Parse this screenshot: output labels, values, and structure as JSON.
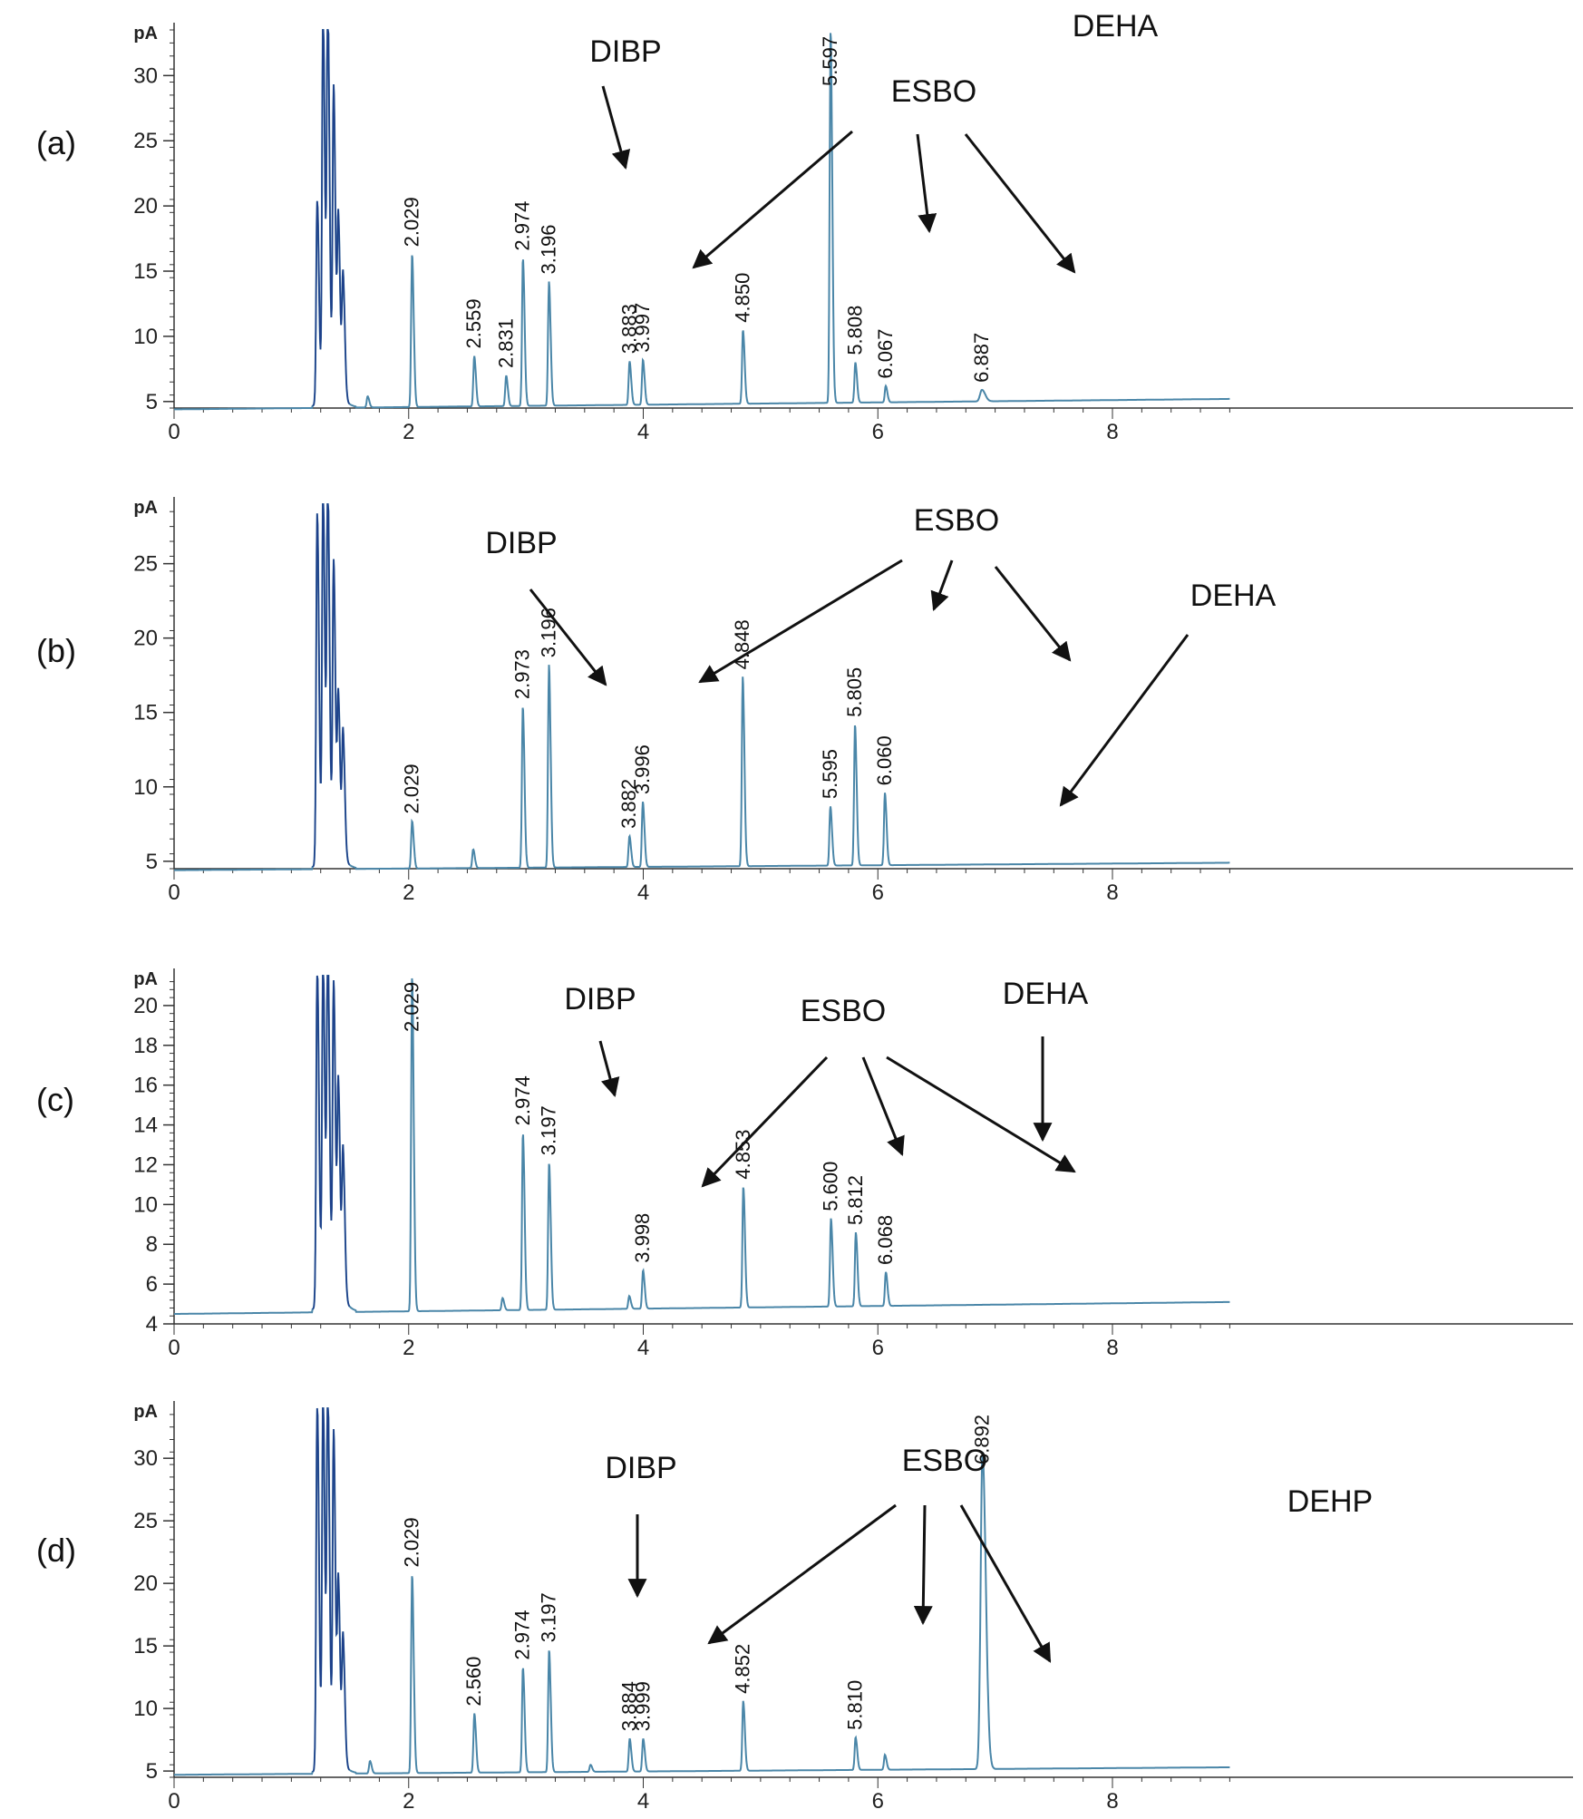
{
  "chart_data": [
    {
      "type": "line",
      "panel_label": "(a)",
      "ylabel": "pA",
      "xlim": [
        0,
        9
      ],
      "ylim": [
        4.5,
        33.5
      ],
      "xticks": [
        0,
        2,
        4,
        6,
        8
      ],
      "yticks": [
        5,
        10,
        15,
        20,
        25,
        30
      ],
      "baseline": [
        4.4,
        5.2
      ],
      "solvent_peaks": [
        {
          "x": 1.22,
          "y": 20
        },
        {
          "x": 1.27,
          "y": 34
        },
        {
          "x": 1.31,
          "y": 34
        },
        {
          "x": 1.36,
          "y": 28
        },
        {
          "x": 1.4,
          "y": 18
        },
        {
          "x": 1.44,
          "y": 14
        }
      ],
      "peaks": [
        {
          "rt": 1.65,
          "y": 5.4
        },
        {
          "rt": 2.029,
          "y": 16.3,
          "label": "2.029"
        },
        {
          "rt": 2.559,
          "y": 8.5,
          "label": "2.559"
        },
        {
          "rt": 2.831,
          "y": 7.0,
          "label": "2.831"
        },
        {
          "rt": 2.974,
          "y": 16.0,
          "label": "2.974"
        },
        {
          "rt": 3.196,
          "y": 14.2,
          "label": "3.196"
        },
        {
          "rt": 3.883,
          "y": 8.1,
          "label": "3.883"
        },
        {
          "rt": 3.997,
          "y": 8.2,
          "label": "3.997"
        },
        {
          "rt": 4.85,
          "y": 10.5,
          "label": "4.850"
        },
        {
          "rt": 5.597,
          "y": 33.5,
          "label": "5.597"
        },
        {
          "rt": 5.808,
          "y": 8.0,
          "label": "5.808"
        },
        {
          "rt": 6.067,
          "y": 6.2,
          "label": "6.067"
        },
        {
          "rt": 6.887,
          "y": 5.9,
          "label": "6.887"
        }
      ],
      "annotations": [
        {
          "text": "DIBP",
          "targets": [
            2.974
          ]
        },
        {
          "text": "ESBO",
          "targets": [
            3.196,
            4.85,
            5.808
          ]
        },
        {
          "text": "DEHA",
          "targets": []
        }
      ]
    },
    {
      "type": "line",
      "panel_label": "(b)",
      "ylabel": "pA",
      "xlim": [
        0,
        9
      ],
      "ylim": [
        4.5,
        29
      ],
      "xticks": [
        0,
        2,
        4,
        6,
        8
      ],
      "yticks": [
        5,
        10,
        15,
        20,
        25
      ],
      "baseline": [
        4.4,
        4.9
      ],
      "solvent_peaks": [
        {
          "x": 1.22,
          "y": 28
        },
        {
          "x": 1.27,
          "y": 29
        },
        {
          "x": 1.31,
          "y": 29
        },
        {
          "x": 1.36,
          "y": 24
        },
        {
          "x": 1.4,
          "y": 15
        },
        {
          "x": 1.44,
          "y": 13
        }
      ],
      "peaks": [
        {
          "rt": 2.029,
          "y": 7.7,
          "label": "2.029"
        },
        {
          "rt": 2.55,
          "y": 5.8
        },
        {
          "rt": 2.973,
          "y": 15.4,
          "label": "2.973"
        },
        {
          "rt": 3.196,
          "y": 18.2,
          "label": "3.196"
        },
        {
          "rt": 3.882,
          "y": 6.7,
          "label": "3.882"
        },
        {
          "rt": 3.996,
          "y": 9.0,
          "label": "3.996"
        },
        {
          "rt": 4.848,
          "y": 17.4,
          "label": "4.848"
        },
        {
          "rt": 5.595,
          "y": 8.7,
          "label": "5.595"
        },
        {
          "rt": 5.805,
          "y": 14.2,
          "label": "5.805"
        },
        {
          "rt": 6.06,
          "y": 9.6,
          "label": "6.060"
        }
      ],
      "annotations": [
        {
          "text": "DIBP",
          "targets": [
            2.973
          ]
        },
        {
          "text": "ESBO",
          "targets": [
            3.196,
            4.848,
            5.805
          ]
        },
        {
          "text": "DEHA",
          "targets": [
            5.595
          ]
        }
      ]
    },
    {
      "type": "line",
      "panel_label": "(c)",
      "ylabel": "pA",
      "xlim": [
        0,
        9
      ],
      "ylim": [
        4,
        21.5
      ],
      "xticks": [
        0,
        2,
        4,
        6,
        8
      ],
      "yticks": [
        4,
        6,
        8,
        10,
        12,
        14,
        16,
        18,
        20
      ],
      "baseline": [
        4.5,
        5.1
      ],
      "solvent_peaks": [
        {
          "x": 1.22,
          "y": 21.5
        },
        {
          "x": 1.27,
          "y": 21.5
        },
        {
          "x": 1.31,
          "y": 21.5
        },
        {
          "x": 1.36,
          "y": 20
        },
        {
          "x": 1.4,
          "y": 15
        },
        {
          "x": 1.44,
          "y": 12
        }
      ],
      "peaks": [
        {
          "rt": 2.029,
          "y": 21.5,
          "label": "2.029"
        },
        {
          "rt": 2.8,
          "y": 5.3
        },
        {
          "rt": 2.974,
          "y": 13.6,
          "label": "2.974"
        },
        {
          "rt": 3.197,
          "y": 12.1,
          "label": "3.197"
        },
        {
          "rt": 3.88,
          "y": 5.4
        },
        {
          "rt": 3.998,
          "y": 6.7,
          "label": "3.998"
        },
        {
          "rt": 4.853,
          "y": 10.9,
          "label": "4.853"
        },
        {
          "rt": 5.6,
          "y": 9.3,
          "label": "5.600"
        },
        {
          "rt": 5.812,
          "y": 8.6,
          "label": "5.812"
        },
        {
          "rt": 6.068,
          "y": 6.6,
          "label": "6.068"
        }
      ],
      "annotations": [
        {
          "text": "DIBP",
          "targets": [
            2.974
          ]
        },
        {
          "text": "ESBO",
          "targets": [
            3.197,
            4.853,
            5.812
          ]
        },
        {
          "text": "DEHA",
          "targets": [
            5.6
          ]
        }
      ]
    },
    {
      "type": "line",
      "panel_label": "(d)",
      "ylabel": "pA",
      "xlim": [
        0,
        9
      ],
      "ylim": [
        4.5,
        34
      ],
      "xticks": [
        0,
        2,
        4,
        6,
        8
      ],
      "yticks": [
        5,
        10,
        15,
        20,
        25,
        30
      ],
      "baseline": [
        4.7,
        5.3
      ],
      "solvent_peaks": [
        {
          "x": 1.22,
          "y": 34
        },
        {
          "x": 1.27,
          "y": 34
        },
        {
          "x": 1.31,
          "y": 34
        },
        {
          "x": 1.36,
          "y": 31
        },
        {
          "x": 1.4,
          "y": 19
        },
        {
          "x": 1.44,
          "y": 15
        }
      ],
      "peaks": [
        {
          "rt": 1.67,
          "y": 5.8
        },
        {
          "rt": 2.029,
          "y": 20.7,
          "label": "2.029"
        },
        {
          "rt": 2.56,
          "y": 9.6,
          "label": "2.560"
        },
        {
          "rt": 2.974,
          "y": 13.3,
          "label": "2.974"
        },
        {
          "rt": 3.197,
          "y": 14.7,
          "label": "3.197"
        },
        {
          "rt": 3.55,
          "y": 5.5
        },
        {
          "rt": 3.884,
          "y": 7.6,
          "label": "3.884"
        },
        {
          "rt": 3.999,
          "y": 7.6,
          "label": "3.999"
        },
        {
          "rt": 4.852,
          "y": 10.6,
          "label": "4.852"
        },
        {
          "rt": 5.81,
          "y": 7.7,
          "label": "5.810"
        },
        {
          "rt": 6.06,
          "y": 6.3
        },
        {
          "rt": 6.892,
          "y": 30.5,
          "label": "6.892"
        }
      ],
      "annotations": [
        {
          "text": "DIBP",
          "targets": [
            2.974
          ]
        },
        {
          "text": "ESBO",
          "targets": [
            3.197,
            4.852,
            5.81
          ]
        },
        {
          "text": "DEHP",
          "targets": []
        }
      ]
    }
  ],
  "colors": {
    "trace": "#4a86a8",
    "trace_dark": "#1d3f8a",
    "axis": "#333333",
    "text": "#111111"
  }
}
